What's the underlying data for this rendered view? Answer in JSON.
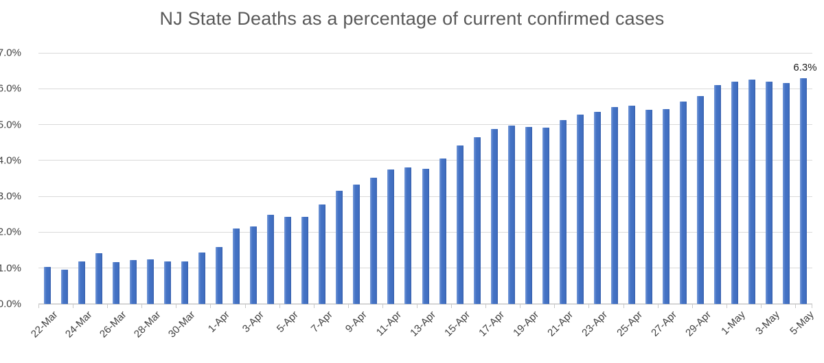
{
  "chart": {
    "title": "NJ State Deaths as a percentage of current confirmed cases"
  },
  "chart_data": {
    "type": "bar",
    "title": "NJ State Deaths as a percentage of current confirmed cases",
    "xlabel": "",
    "ylabel": "",
    "ylim": [
      0,
      7
    ],
    "grid": true,
    "legend": "none",
    "bar_color": "#4472C4",
    "gridline_color": "#d9d9d9",
    "title_color": "#595959",
    "axis_text_color": "#404040",
    "y_tick_labels": [
      "0.0%",
      "1.0%",
      "2.0%",
      "3.0%",
      "4.0%",
      "5.0%",
      "6.0%",
      "7.0%"
    ],
    "x_tick_labels": [
      "22-Mar",
      "24-Mar",
      "26-Mar",
      "28-Mar",
      "30-Mar",
      "1-Apr",
      "3-Apr",
      "5-Apr",
      "7-Apr",
      "9-Apr",
      "11-Apr",
      "13-Apr",
      "15-Apr",
      "17-Apr",
      "19-Apr",
      "21-Apr",
      "23-Apr",
      "25-Apr",
      "27-Apr",
      "29-Apr",
      "1-May",
      "3-May",
      "5-May"
    ],
    "categories": [
      "22-Mar",
      "23-Mar",
      "24-Mar",
      "25-Mar",
      "26-Mar",
      "27-Mar",
      "28-Mar",
      "29-Mar",
      "30-Mar",
      "31-Mar",
      "1-Apr",
      "2-Apr",
      "3-Apr",
      "4-Apr",
      "5-Apr",
      "6-Apr",
      "7-Apr",
      "8-Apr",
      "9-Apr",
      "10-Apr",
      "11-Apr",
      "12-Apr",
      "13-Apr",
      "14-Apr",
      "15-Apr",
      "16-Apr",
      "17-Apr",
      "18-Apr",
      "19-Apr",
      "20-Apr",
      "21-Apr",
      "22-Apr",
      "23-Apr",
      "24-Apr",
      "25-Apr",
      "26-Apr",
      "27-Apr",
      "28-Apr",
      "29-Apr",
      "30-Apr",
      "1-May",
      "2-May",
      "3-May",
      "4-May",
      "5-May"
    ],
    "values": [
      1.03,
      0.96,
      1.19,
      1.41,
      1.17,
      1.23,
      1.25,
      1.19,
      1.18,
      1.43,
      1.58,
      2.1,
      2.17,
      2.48,
      2.43,
      2.43,
      2.77,
      3.16,
      3.32,
      3.52,
      3.74,
      3.8,
      3.77,
      4.06,
      4.42,
      4.65,
      4.87,
      4.98,
      4.94,
      4.91,
      5.13,
      5.27,
      5.35,
      5.48,
      5.53,
      5.42,
      5.43,
      5.64,
      5.8,
      6.1,
      6.2,
      6.26,
      6.2,
      6.15,
      6.3
    ],
    "annotation": {
      "text": "6.3%",
      "category": "5-May"
    }
  }
}
